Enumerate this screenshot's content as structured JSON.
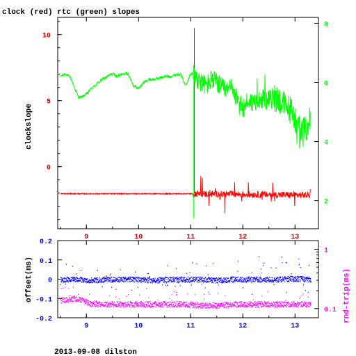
{
  "caption": "2013-09-08 dilston",
  "colors": {
    "clock": "#ff0000",
    "rtc": "#00ff00",
    "offset": "#0000ff",
    "rndtrip": "#ff00ff",
    "tick_text": "#cc0000",
    "left_ticks": "#0000cc",
    "right_ticks": "#00cc00"
  },
  "chart_data": [
    {
      "type": "line",
      "title": "clock (red) rtc (green) slopes",
      "ylabel": "clockslope",
      "xlim": [
        8.45,
        13.45
      ],
      "ylim": [
        -4.7,
        11.3
      ],
      "y2lim": [
        1.05,
        8.2
      ],
      "x_ticks": [
        "9",
        "10",
        "11",
        "12",
        "13"
      ],
      "y_ticks": [
        "0",
        "5",
        "10"
      ],
      "y2_ticks": [
        "2",
        "4",
        "6",
        "8"
      ],
      "grid": false,
      "series": [
        {
          "name": "clock",
          "axis": "left",
          "x": [
            8.5,
            8.8,
            9.1,
            9.4,
            9.7,
            10.0,
            10.3,
            10.6,
            10.9,
            11.06,
            11.07,
            11.2,
            11.4,
            11.6,
            11.8,
            12.0,
            12.2,
            12.4,
            12.6,
            12.8,
            13.0,
            13.2,
            13.3
          ],
          "y": [
            -2.0,
            -2.05,
            -2.1,
            -2.05,
            -2.0,
            -2.1,
            -2.05,
            -2.05,
            -2.0,
            -2.0,
            10.5,
            -2.1,
            -2.0,
            -1.9,
            -1.9,
            -2.2,
            -2.2,
            -2.1,
            -2.0,
            -2.2,
            -2.3,
            -2.1,
            -2.2
          ]
        },
        {
          "name": "rtc",
          "axis": "right",
          "x": [
            8.5,
            8.6,
            8.7,
            8.8,
            8.85,
            8.9,
            9.0,
            9.1,
            9.2,
            9.3,
            9.4,
            9.5,
            9.6,
            9.7,
            9.8,
            9.9,
            10.0,
            10.1,
            10.2,
            10.3,
            10.4,
            10.5,
            10.6,
            10.7,
            10.8,
            10.9,
            11.0,
            11.05,
            11.1,
            11.2,
            11.3,
            11.4,
            11.5,
            11.6,
            11.7,
            11.8,
            11.9,
            12.0,
            12.1,
            12.2,
            12.3,
            12.4,
            12.5,
            12.6,
            12.7,
            12.8,
            12.9,
            13.0,
            13.1,
            13.2,
            13.3
          ],
          "y": [
            6.2,
            6.3,
            6.15,
            5.7,
            5.5,
            5.5,
            5.6,
            5.8,
            5.95,
            6.1,
            6.2,
            6.3,
            6.2,
            6.3,
            6.3,
            5.9,
            5.8,
            6.0,
            6.1,
            6.1,
            6.15,
            6.2,
            6.2,
            6.25,
            6.3,
            5.9,
            6.3,
            6.3,
            6.2,
            6.0,
            5.9,
            6.1,
            6.0,
            5.8,
            5.7,
            5.9,
            5.3,
            5.1,
            5.4,
            5.3,
            5.5,
            5.4,
            5.4,
            5.5,
            5.4,
            5.2,
            5.1,
            4.8,
            4.2,
            4.4,
            4.8
          ]
        }
      ]
    },
    {
      "type": "scatter",
      "ylabel": "offset(ms)",
      "y2label": "rnd-trip(ms)",
      "xlim": [
        8.45,
        13.45
      ],
      "ylim": [
        -0.2,
        0.2
      ],
      "y2_log": true,
      "y2lim": [
        0.07,
        1.4
      ],
      "x_ticks": [
        "9",
        "10",
        "11",
        "12",
        "13"
      ],
      "y_ticks": [
        "-0.2",
        "-0.1",
        "0",
        "0.1",
        "0.2"
      ],
      "y2_ticks": [
        "0.1",
        "1"
      ],
      "series": [
        {
          "name": "offset",
          "axis": "left",
          "x": [
            8.5,
            8.8,
            9.1,
            9.4,
            9.7,
            10.0,
            10.3,
            10.6,
            10.9,
            11.2,
            11.5,
            11.8,
            12.1,
            12.4,
            12.7,
            13.0,
            13.3
          ],
          "y": [
            0.0,
            0.0,
            -0.005,
            0.0,
            0.0,
            0.0,
            -0.005,
            0.0,
            0.0,
            0.0,
            -0.005,
            0.0,
            0.0,
            0.0,
            0.0,
            0.005,
            0.0
          ]
        },
        {
          "name": "rnd-trip",
          "axis": "right",
          "x": [
            8.5,
            8.8,
            9.1,
            9.4,
            9.7,
            10.0,
            10.3,
            10.6,
            10.9,
            11.2,
            11.5,
            11.8,
            12.1,
            12.4,
            12.7,
            13.0,
            13.3
          ],
          "y": [
            0.14,
            0.15,
            0.12,
            0.12,
            0.12,
            0.12,
            0.12,
            0.12,
            0.12,
            0.115,
            0.115,
            0.12,
            0.12,
            0.12,
            0.12,
            0.12,
            0.12
          ]
        }
      ]
    }
  ]
}
